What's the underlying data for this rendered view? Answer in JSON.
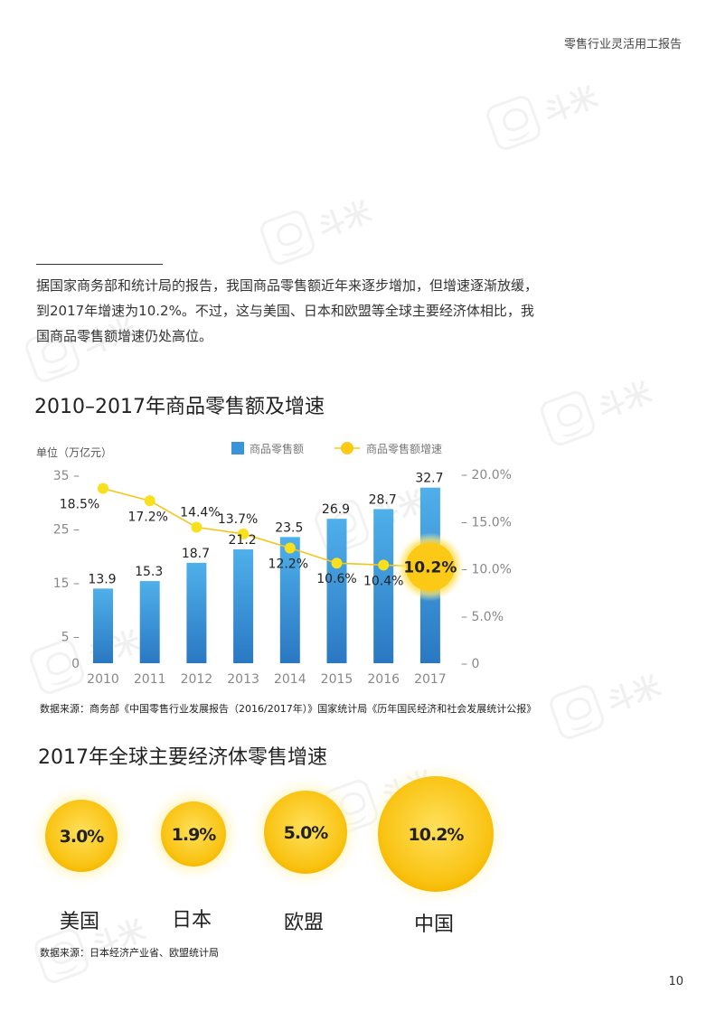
{
  "header": {
    "title": "零售行业灵活用工报告"
  },
  "watermark": {
    "text": "斗米"
  },
  "intro": {
    "text": "据国家商务部和统计局的报告，我国商品零售额近年来逐步增加，但增速逐渐放缓，到2017年增速为10.2%。不过，这与美国、日本和欧盟等全球主要经济体相比，我国商品零售额增速仍处高位。"
  },
  "chart_data": [
    {
      "type": "bar",
      "title": "2010–2017年商品零售额及增速",
      "unit_label": "单位（万亿元）",
      "categories": [
        "2010",
        "2011",
        "2012",
        "2013",
        "2014",
        "2015",
        "2016",
        "2017"
      ],
      "series": [
        {
          "name": "商品零售额",
          "type": "bar",
          "axis": "left",
          "values": [
            13.9,
            15.3,
            18.7,
            21.2,
            23.5,
            26.9,
            28.7,
            32.7
          ],
          "labels": [
            "13.9",
            "15.3",
            "18.7",
            "21.2",
            "23.5",
            "26.9",
            "28.7",
            "32.7"
          ],
          "color": "#3a95d8"
        },
        {
          "name": "商品零售额增速",
          "type": "line",
          "axis": "right",
          "values": [
            18.5,
            17.2,
            14.4,
            13.7,
            12.2,
            10.6,
            10.4,
            10.2
          ],
          "labels": [
            "18.5%",
            "17.2%",
            "14.4%",
            "13.7%",
            "12.2%",
            "10.6%",
            "10.4%",
            "10.2%"
          ],
          "color": "#f5c518"
        }
      ],
      "y_left": {
        "ticks": [
          35,
          25,
          15,
          5,
          0
        ],
        "tick_labels": [
          "35 –",
          "25 –",
          "15 –",
          "5 –",
          "0"
        ],
        "ylim": [
          0,
          40
        ]
      },
      "y_right": {
        "ticks": [
          20,
          15,
          10,
          5,
          0
        ],
        "tick_labels": [
          "– 20.0%",
          "– 15.0%",
          "– 10.0%",
          "– 5.0%",
          "– 0"
        ],
        "ylim": [
          0,
          20
        ]
      },
      "grid": false,
      "legend_position": "top-center",
      "highlight": {
        "index": 7,
        "label": "10.2%"
      },
      "source": "数据来源：商务部《中国零售行业发展报告（2016/2017年）》国家统计局《历年国民经济和社会发展统计公报》"
    },
    {
      "type": "bubble",
      "title": "2017年全球主要经济体零售增速",
      "categories": [
        "美国",
        "日本",
        "欧盟",
        "中国"
      ],
      "values": [
        3.0,
        1.9,
        5.0,
        10.2
      ],
      "labels": [
        "3.0%",
        "1.9%",
        "5.0%",
        "10.2%"
      ],
      "colors": {
        "fill_inner": "#ffe05c",
        "fill_outer": "#f5b800",
        "glow": "#fff2a8"
      },
      "source": "数据来源：日本经济产业省、欧盟统计局"
    }
  ],
  "footer": {
    "page_number": "10"
  }
}
